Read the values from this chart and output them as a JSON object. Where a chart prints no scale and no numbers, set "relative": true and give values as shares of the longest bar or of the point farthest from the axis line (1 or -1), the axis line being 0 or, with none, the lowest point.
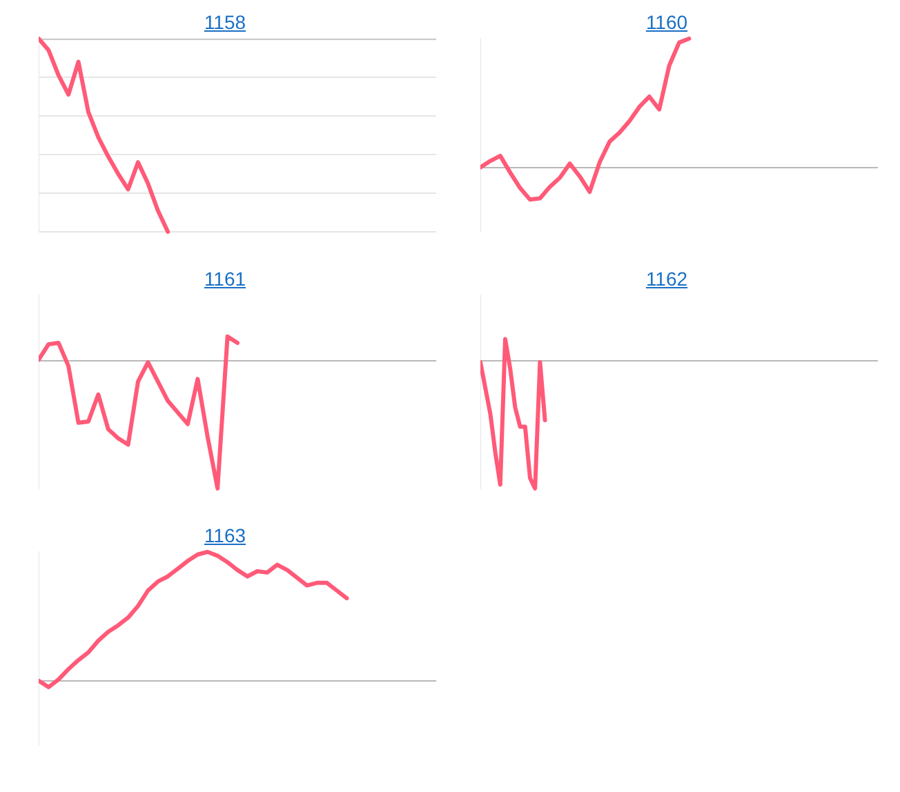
{
  "chart_data": [
    {
      "type": "line",
      "title": "1158",
      "relative": true,
      "grid": "y",
      "color": "#ff5a78",
      "categories": [
        null,
        null,
        null,
        null,
        null,
        null,
        null,
        null,
        null,
        null,
        null,
        null,
        null,
        null,
        null,
        null,
        null,
        null,
        null,
        null,
        null,
        null,
        null,
        null,
        null,
        null,
        null,
        null,
        null,
        null,
        null,
        null,
        null,
        null,
        null,
        null,
        null,
        null,
        null,
        null,
        null
      ],
      "values": [
        0,
        -0.06,
        -0.19,
        -0.29,
        -0.12,
        -0.38,
        -0.51,
        -0.61,
        -0.7,
        -0.78,
        -0.64,
        -0.75,
        -0.89,
        -1,
        null,
        null,
        null,
        null,
        null,
        null,
        null,
        null,
        null,
        null,
        null,
        null,
        null,
        null,
        null,
        null,
        null,
        null,
        null,
        null,
        null,
        null,
        null,
        null,
        null,
        null,
        null
      ]
    },
    {
      "type": "line",
      "title": "1160",
      "relative": true,
      "color": "#ff5a78",
      "categories": [
        null,
        null,
        null,
        null,
        null,
        null,
        null,
        null,
        null,
        null,
        null,
        null,
        null,
        null,
        null,
        null,
        null,
        null,
        null,
        null,
        null,
        null,
        null,
        null,
        null,
        null,
        null,
        null,
        null,
        null,
        null,
        null,
        null,
        null,
        null,
        null,
        null,
        null,
        null,
        null,
        null
      ],
      "values": [
        0,
        0.05,
        0.09,
        -0.04,
        -0.16,
        -0.25,
        -0.24,
        -0.15,
        -0.08,
        0.03,
        -0.07,
        -0.19,
        0.04,
        0.2,
        0.27,
        0.36,
        0.47,
        0.55,
        0.45,
        0.79,
        0.97,
        1,
        null,
        null,
        null,
        null,
        null,
        null,
        null,
        null,
        null,
        null,
        null,
        null,
        null,
        null,
        null,
        null,
        null,
        null,
        null
      ]
    },
    {
      "type": "line",
      "title": "1161",
      "relative": true,
      "color": "#ff5a78",
      "categories": [
        null,
        null,
        null,
        null,
        null,
        null,
        null,
        null,
        null,
        null,
        null,
        null,
        null,
        null,
        null,
        null,
        null,
        null,
        null,
        null,
        null,
        null,
        null,
        null,
        null,
        null,
        null,
        null,
        null,
        null,
        null,
        null,
        null,
        null,
        null,
        null,
        null,
        null,
        null,
        null,
        null
      ],
      "values": [
        0,
        0.12,
        0.13,
        -0.05,
        -0.49,
        -0.48,
        -0.27,
        -0.54,
        -0.61,
        -0.66,
        -0.17,
        -0.02,
        -0.17,
        -0.32,
        -0.41,
        -0.5,
        -0.15,
        -0.6,
        -1,
        0.18,
        0.13,
        null,
        null,
        null,
        null,
        null,
        null,
        null,
        null,
        null,
        null,
        null,
        null,
        null,
        null,
        null,
        null,
        null,
        null,
        null,
        null
      ]
    },
    {
      "type": "line",
      "title": "1162",
      "relative": true,
      "color": "#ff5a78",
      "categories": [
        null,
        null,
        null,
        null,
        null,
        null,
        null,
        null,
        null,
        null,
        null,
        null,
        null,
        null,
        null,
        null,
        null,
        null,
        null,
        null,
        null,
        null,
        null,
        null,
        null,
        null,
        null,
        null,
        null,
        null,
        null,
        null,
        null,
        null,
        null,
        null,
        null,
        null,
        null,
        null,
        null,
        null,
        null,
        null,
        null,
        null,
        null,
        null,
        null,
        null,
        null,
        null,
        null,
        null,
        null,
        null,
        null,
        null,
        null,
        null,
        null,
        null,
        null,
        null,
        null,
        null,
        null,
        null,
        null,
        null,
        null,
        null,
        null,
        null,
        null,
        null,
        null,
        null,
        null,
        null,
        null
      ],
      "values": [
        -0.02,
        -0.22,
        -0.42,
        -0.72,
        -0.97,
        0.16,
        -0.07,
        -0.37,
        -0.52,
        -0.52,
        -0.92,
        -1,
        -0.02,
        -0.47,
        null,
        null,
        null,
        null,
        null,
        null,
        null,
        null,
        null,
        null,
        null,
        null,
        null,
        null,
        null,
        null,
        null,
        null,
        null,
        null,
        null,
        null,
        null,
        null,
        null,
        null,
        null,
        null,
        null,
        null,
        null,
        null,
        null,
        null,
        null,
        null,
        null,
        null,
        null,
        null,
        null,
        null,
        null,
        null,
        null,
        null,
        null,
        null,
        null,
        null,
        null,
        null,
        null,
        null,
        null,
        null,
        null,
        null,
        null,
        null,
        null,
        null,
        null,
        null,
        null,
        null,
        null
      ]
    },
    {
      "type": "line",
      "title": "1163",
      "relative": true,
      "color": "#ff5a78",
      "categories": [
        null,
        null,
        null,
        null,
        null,
        null,
        null,
        null,
        null,
        null,
        null,
        null,
        null,
        null,
        null,
        null,
        null,
        null,
        null,
        null,
        null,
        null,
        null,
        null,
        null,
        null,
        null,
        null,
        null,
        null,
        null,
        null,
        null,
        null,
        null,
        null,
        null,
        null,
        null,
        null,
        null
      ],
      "values": [
        0,
        -0.05,
        0.01,
        0.09,
        0.16,
        0.22,
        0.31,
        0.38,
        0.43,
        0.49,
        0.58,
        0.7,
        0.77,
        0.81,
        0.87,
        0.93,
        0.98,
        1,
        0.97,
        0.92,
        0.86,
        0.81,
        0.85,
        0.84,
        0.9,
        0.86,
        0.8,
        0.74,
        0.76,
        0.76,
        0.7,
        0.64,
        null,
        null,
        null,
        null,
        null,
        null,
        null,
        null,
        null
      ]
    }
  ]
}
